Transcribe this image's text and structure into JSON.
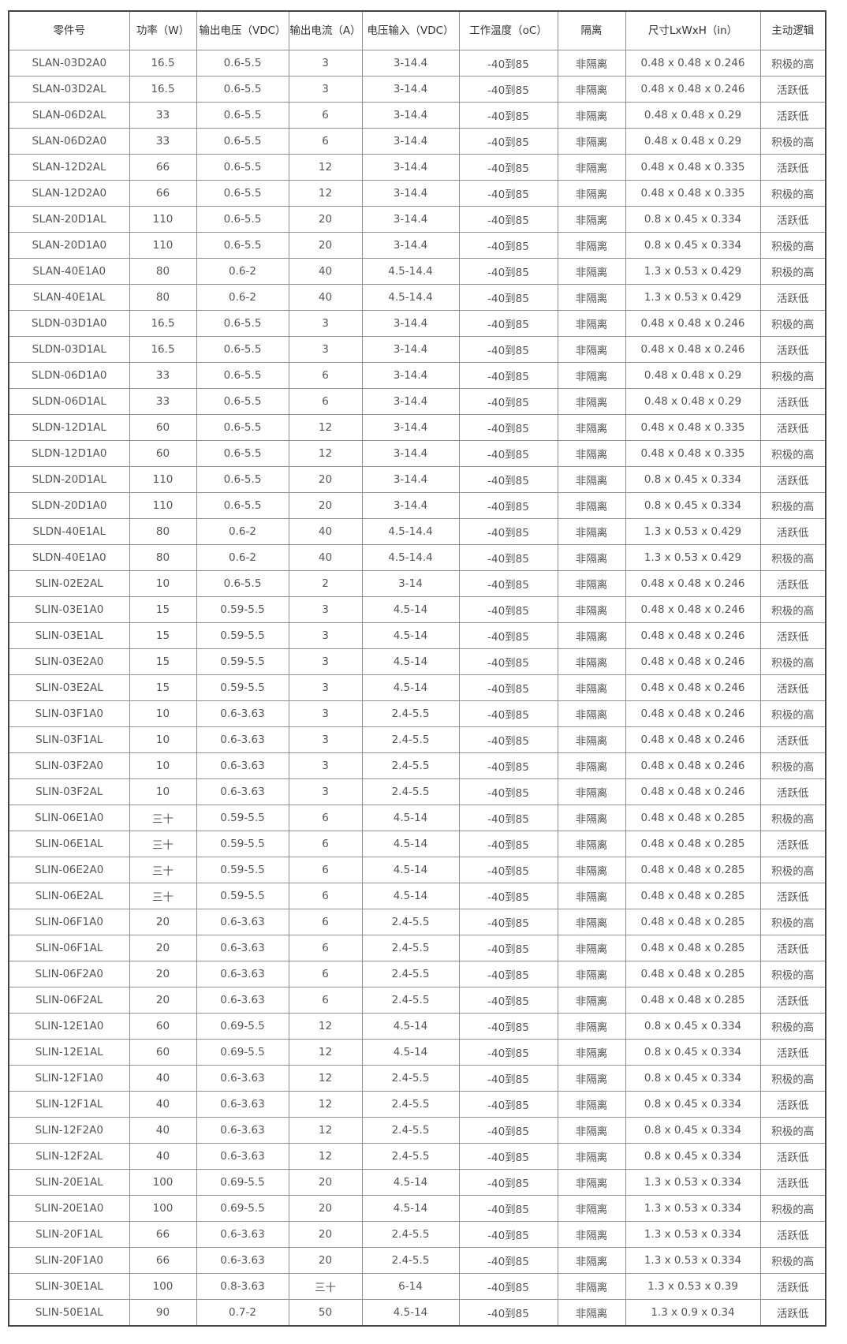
{
  "table": {
    "headers": [
      "零件号",
      "功率（W）",
      "输出电压（VDC）",
      "输出电流（A）",
      "电压输入（VDC）",
      "工作温度（oC）",
      "隔离",
      "尺寸LxWxH（in）",
      "主动逻辑"
    ],
    "rows": [
      [
        "SLAN-03D2A0",
        "16.5",
        "0.6-5.5",
        "3",
        "3-14.4",
        "-40到85",
        "非隔离",
        "0.48 x 0.48 x 0.246",
        "积极的高"
      ],
      [
        "SLAN-03D2AL",
        "16.5",
        "0.6-5.5",
        "3",
        "3-14.4",
        "-40到85",
        "非隔离",
        "0.48 x 0.48 x 0.246",
        "活跃低"
      ],
      [
        "SLAN-06D2AL",
        "33",
        "0.6-5.5",
        "6",
        "3-14.4",
        "-40到85",
        "非隔离",
        "0.48 x 0.48 x 0.29",
        "活跃低"
      ],
      [
        "SLAN-06D2A0",
        "33",
        "0.6-5.5",
        "6",
        "3-14.4",
        "-40到85",
        "非隔离",
        "0.48 x 0.48 x 0.29",
        "积极的高"
      ],
      [
        "SLAN-12D2AL",
        "66",
        "0.6-5.5",
        "12",
        "3-14.4",
        "-40到85",
        "非隔离",
        "0.48 x 0.48 x 0.335",
        "活跃低"
      ],
      [
        "SLAN-12D2A0",
        "66",
        "0.6-5.5",
        "12",
        "3-14.4",
        "-40到85",
        "非隔离",
        "0.48 x 0.48 x 0.335",
        "积极的高"
      ],
      [
        "SLAN-20D1AL",
        "110",
        "0.6-5.5",
        "20",
        "3-14.4",
        "-40到85",
        "非隔离",
        "0.8 x 0.45 x 0.334",
        "活跃低"
      ],
      [
        "SLAN-20D1A0",
        "110",
        "0.6-5.5",
        "20",
        "3-14.4",
        "-40到85",
        "非隔离",
        "0.8 x 0.45 x 0.334",
        "积极的高"
      ],
      [
        "SLAN-40E1A0",
        "80",
        "0.6-2",
        "40",
        "4.5-14.4",
        "-40到85",
        "非隔离",
        "1.3 x 0.53 x 0.429",
        "积极的高"
      ],
      [
        "SLAN-40E1AL",
        "80",
        "0.6-2",
        "40",
        "4.5-14.4",
        "-40到85",
        "非隔离",
        "1.3 x 0.53 x 0.429",
        "活跃低"
      ],
      [
        "SLDN-03D1A0",
        "16.5",
        "0.6-5.5",
        "3",
        "3-14.4",
        "-40到85",
        "非隔离",
        "0.48 x 0.48 x 0.246",
        "积极的高"
      ],
      [
        "SLDN-03D1AL",
        "16.5",
        "0.6-5.5",
        "3",
        "3-14.4",
        "-40到85",
        "非隔离",
        "0.48 x 0.48 x 0.246",
        "活跃低"
      ],
      [
        "SLDN-06D1A0",
        "33",
        "0.6-5.5",
        "6",
        "3-14.4",
        "-40到85",
        "非隔离",
        "0.48 x 0.48 x 0.29",
        "积极的高"
      ],
      [
        "SLDN-06D1AL",
        "33",
        "0.6-5.5",
        "6",
        "3-14.4",
        "-40到85",
        "非隔离",
        "0.48 x 0.48 x 0.29",
        "活跃低"
      ],
      [
        "SLDN-12D1AL",
        "60",
        "0.6-5.5",
        "12",
        "3-14.4",
        "-40到85",
        "非隔离",
        "0.48 x 0.48 x 0.335",
        "活跃低"
      ],
      [
        "SLDN-12D1A0",
        "60",
        "0.6-5.5",
        "12",
        "3-14.4",
        "-40到85",
        "非隔离",
        "0.48 x 0.48 x 0.335",
        "积极的高"
      ],
      [
        "SLDN-20D1AL",
        "110",
        "0.6-5.5",
        "20",
        "3-14.4",
        "-40到85",
        "非隔离",
        "0.8 x 0.45 x 0.334",
        "活跃低"
      ],
      [
        "SLDN-20D1A0",
        "110",
        "0.6-5.5",
        "20",
        "3-14.4",
        "-40到85",
        "非隔离",
        "0.8 x 0.45 x 0.334",
        "积极的高"
      ],
      [
        "SLDN-40E1AL",
        "80",
        "0.6-2",
        "40",
        "4.5-14.4",
        "-40到85",
        "非隔离",
        "1.3 x 0.53 x 0.429",
        "活跃低"
      ],
      [
        "SLDN-40E1A0",
        "80",
        "0.6-2",
        "40",
        "4.5-14.4",
        "-40到85",
        "非隔离",
        "1.3 x 0.53 x 0.429",
        "积极的高"
      ],
      [
        "SLIN-02E2AL",
        "10",
        "0.6-5.5",
        "2",
        "3-14",
        "-40到85",
        "非隔离",
        "0.48 x 0.48 x 0.246",
        "活跃低"
      ],
      [
        "SLIN-03E1A0",
        "15",
        "0.59-5.5",
        "3",
        "4.5-14",
        "-40到85",
        "非隔离",
        "0.48 x 0.48 x 0.246",
        "积极的高"
      ],
      [
        "SLIN-03E1AL",
        "15",
        "0.59-5.5",
        "3",
        "4.5-14",
        "-40到85",
        "非隔离",
        "0.48 x 0.48 x 0.246",
        "活跃低"
      ],
      [
        "SLIN-03E2A0",
        "15",
        "0.59-5.5",
        "3",
        "4.5-14",
        "-40到85",
        "非隔离",
        "0.48 x 0.48 x 0.246",
        "积极的高"
      ],
      [
        "SLIN-03E2AL",
        "15",
        "0.59-5.5",
        "3",
        "4.5-14",
        "-40到85",
        "非隔离",
        "0.48 x 0.48 x 0.246",
        "活跃低"
      ],
      [
        "SLIN-03F1A0",
        "10",
        "0.6-3.63",
        "3",
        "2.4-5.5",
        "-40到85",
        "非隔离",
        "0.48 x 0.48 x 0.246",
        "积极的高"
      ],
      [
        "SLIN-03F1AL",
        "10",
        "0.6-3.63",
        "3",
        "2.4-5.5",
        "-40到85",
        "非隔离",
        "0.48 x 0.48 x 0.246",
        "活跃低"
      ],
      [
        "SLIN-03F2A0",
        "10",
        "0.6-3.63",
        "3",
        "2.4-5.5",
        "-40到85",
        "非隔离",
        "0.48 x 0.48 x 0.246",
        "积极的高"
      ],
      [
        "SLIN-03F2AL",
        "10",
        "0.6-3.63",
        "3",
        "2.4-5.5",
        "-40到85",
        "非隔离",
        "0.48 x 0.48 x 0.246",
        "活跃低"
      ],
      [
        "SLIN-06E1A0",
        "三十",
        "0.59-5.5",
        "6",
        "4.5-14",
        "-40到85",
        "非隔离",
        "0.48 x 0.48 x 0.285",
        "积极的高"
      ],
      [
        "SLIN-06E1AL",
        "三十",
        "0.59-5.5",
        "6",
        "4.5-14",
        "-40到85",
        "非隔离",
        "0.48 x 0.48 x 0.285",
        "活跃低"
      ],
      [
        "SLIN-06E2A0",
        "三十",
        "0.59-5.5",
        "6",
        "4.5-14",
        "-40到85",
        "非隔离",
        "0.48 x 0.48 x 0.285",
        "积极的高"
      ],
      [
        "SLIN-06E2AL",
        "三十",
        "0.59-5.5",
        "6",
        "4.5-14",
        "-40到85",
        "非隔离",
        "0.48 x 0.48 x 0.285",
        "活跃低"
      ],
      [
        "SLIN-06F1A0",
        "20",
        "0.6-3.63",
        "6",
        "2.4-5.5",
        "-40到85",
        "非隔离",
        "0.48 x 0.48 x 0.285",
        "积极的高"
      ],
      [
        "SLIN-06F1AL",
        "20",
        "0.6-3.63",
        "6",
        "2.4-5.5",
        "-40到85",
        "非隔离",
        "0.48 x 0.48 x 0.285",
        "活跃低"
      ],
      [
        "SLIN-06F2A0",
        "20",
        "0.6-3.63",
        "6",
        "2.4-5.5",
        "-40到85",
        "非隔离",
        "0.48 x 0.48 x 0.285",
        "积极的高"
      ],
      [
        "SLIN-06F2AL",
        "20",
        "0.6-3.63",
        "6",
        "2.4-5.5",
        "-40到85",
        "非隔离",
        "0.48 x 0.48 x 0.285",
        "活跃低"
      ],
      [
        "SLIN-12E1A0",
        "60",
        "0.69-5.5",
        "12",
        "4.5-14",
        "-40到85",
        "非隔离",
        "0.8 x 0.45 x 0.334",
        "积极的高"
      ],
      [
        "SLIN-12E1AL",
        "60",
        "0.69-5.5",
        "12",
        "4.5-14",
        "-40到85",
        "非隔离",
        "0.8 x 0.45 x 0.334",
        "活跃低"
      ],
      [
        "SLIN-12F1A0",
        "40",
        "0.6-3.63",
        "12",
        "2.4-5.5",
        "-40到85",
        "非隔离",
        "0.8 x 0.45 x 0.334",
        "积极的高"
      ],
      [
        "SLIN-12F1AL",
        "40",
        "0.6-3.63",
        "12",
        "2.4-5.5",
        "-40到85",
        "非隔离",
        "0.8 x 0.45 x 0.334",
        "活跃低"
      ],
      [
        "SLIN-12F2A0",
        "40",
        "0.6-3.63",
        "12",
        "2.4-5.5",
        "-40到85",
        "非隔离",
        "0.8 x 0.45 x 0.334",
        "积极的高"
      ],
      [
        "SLIN-12F2AL",
        "40",
        "0.6-3.63",
        "12",
        "2.4-5.5",
        "-40到85",
        "非隔离",
        "0.8 x 0.45 x 0.334",
        "活跃低"
      ],
      [
        "SLIN-20E1AL",
        "100",
        "0.69-5.5",
        "20",
        "4.5-14",
        "-40到85",
        "非隔离",
        "1.3 x 0.53 x 0.334",
        "活跃低"
      ],
      [
        "SLIN-20E1A0",
        "100",
        "0.69-5.5",
        "20",
        "4.5-14",
        "-40到85",
        "非隔离",
        "1.3 x 0.53 x 0.334",
        "积极的高"
      ],
      [
        "SLIN-20F1AL",
        "66",
        "0.6-3.63",
        "20",
        "2.4-5.5",
        "-40到85",
        "非隔离",
        "1.3 x 0.53 x 0.334",
        "活跃低"
      ],
      [
        "SLIN-20F1A0",
        "66",
        "0.6-3.63",
        "20",
        "2.4-5.5",
        "-40到85",
        "非隔离",
        "1.3 x 0.53 x 0.334",
        "积极的高"
      ],
      [
        "SLIN-30E1AL",
        "100",
        "0.8-3.63",
        "三十",
        "6-14",
        "-40到85",
        "非隔离",
        "1.3 x 0.53 x 0.39",
        "活跃低"
      ],
      [
        "SLIN-50E1AL",
        "90",
        "0.7-2",
        "50",
        "4.5-14",
        "-40到85",
        "非隔离",
        "1.3 x 0.9 x 0.34",
        "活跃低"
      ]
    ]
  }
}
